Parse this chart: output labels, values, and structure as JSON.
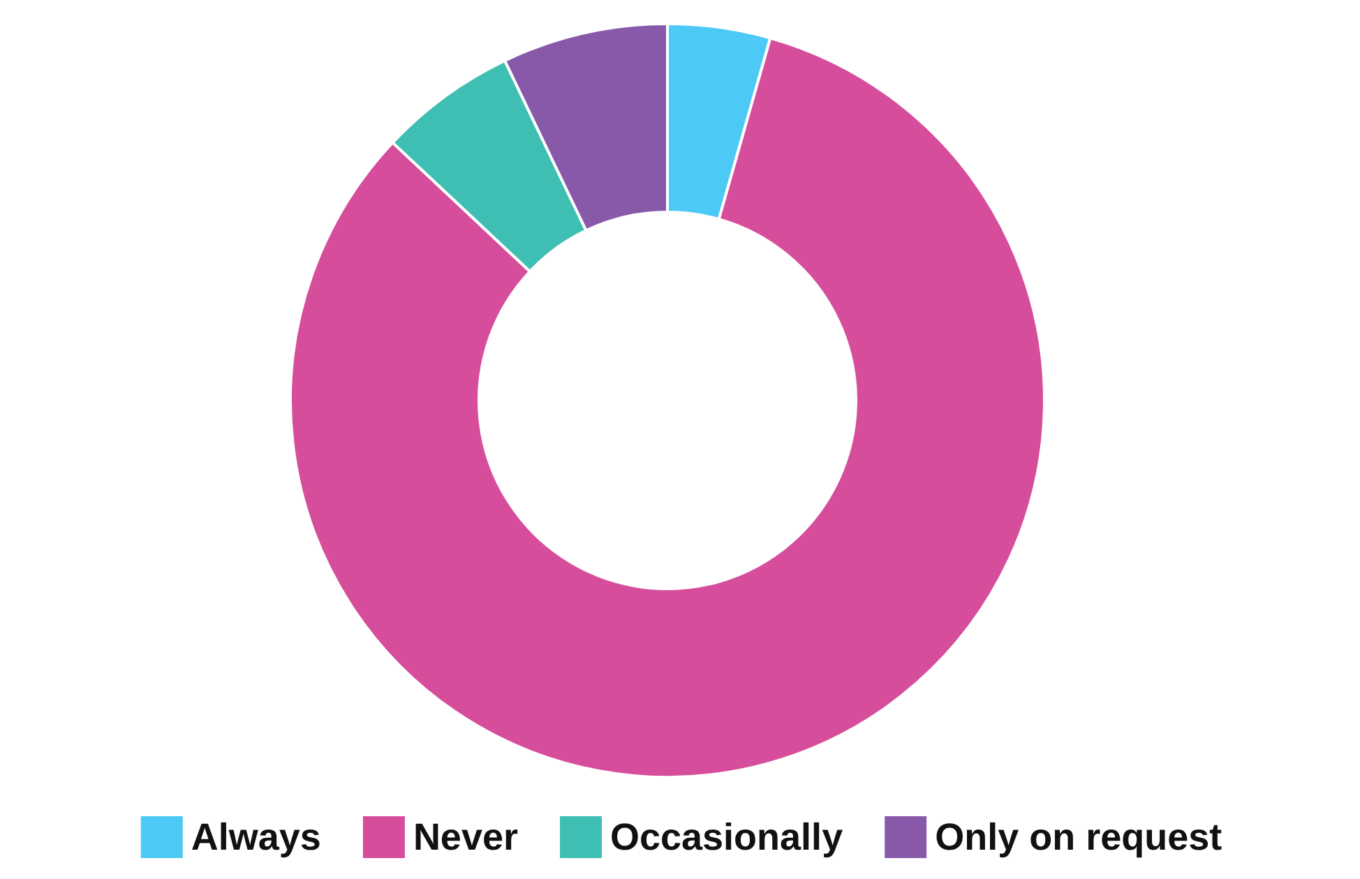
{
  "chart_data": {
    "type": "donut",
    "categories": [
      "Always",
      "Never",
      "Occasionally",
      "Only on request"
    ],
    "values": [
      4.4,
      82.6,
      5.9,
      7.1
    ],
    "colors": [
      "#4dc9f6",
      "#d64e9b",
      "#3fbfb3",
      "#8859a8"
    ],
    "legend": "bottom"
  }
}
